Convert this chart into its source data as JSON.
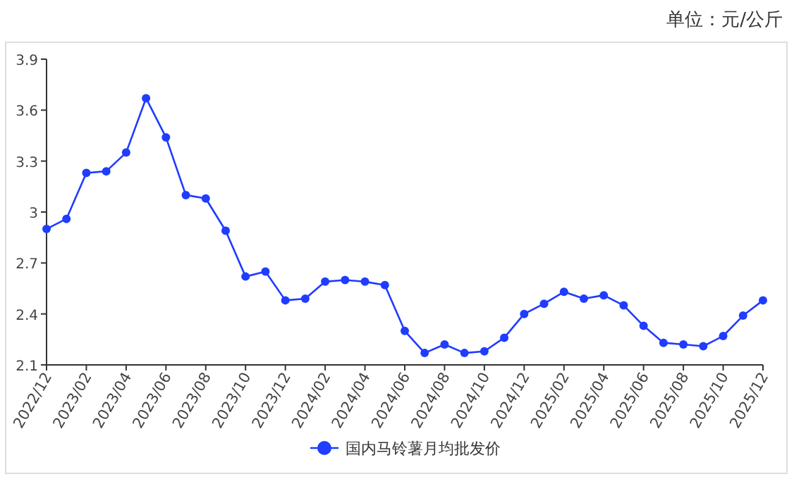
{
  "chart_data": {
    "type": "line",
    "annotations": [
      "单位：元/公斤"
    ],
    "categories": [
      "2022/12",
      null,
      "2023/02",
      null,
      "2023/04",
      null,
      "2023/06",
      null,
      "2023/08",
      null,
      "2023/10",
      null,
      "2023/12",
      null,
      "2024/02",
      null,
      "2024/04",
      null,
      "2024/06",
      null,
      "2024/08",
      null,
      "2024/10",
      null,
      "2024/12",
      null,
      "2025/02",
      null,
      "2025/04",
      null,
      "2025/06",
      null,
      "2025/08",
      null,
      "2025/10",
      null,
      "2025/12"
    ],
    "series": [
      {
        "name": "国内马铃薯月均批发价",
        "color": "#1f3cff",
        "values": [
          2.9,
          2.96,
          3.23,
          3.24,
          3.35,
          3.67,
          3.44,
          3.1,
          3.08,
          2.89,
          2.62,
          2.65,
          2.48,
          2.49,
          2.59,
          2.6,
          2.59,
          2.57,
          2.3,
          2.17,
          2.22,
          2.17,
          2.18,
          2.26,
          2.4,
          2.46,
          2.53,
          2.49,
          2.51,
          2.45,
          2.33,
          2.23,
          2.22,
          2.21,
          2.27,
          2.39,
          2.48
        ]
      }
    ],
    "ylim": [
      2.1,
      3.9
    ],
    "yticks": [
      2.1,
      2.4,
      2.7,
      3,
      3.3,
      3.6,
      3.9
    ],
    "marker": "circle",
    "legend": "bottom"
  }
}
